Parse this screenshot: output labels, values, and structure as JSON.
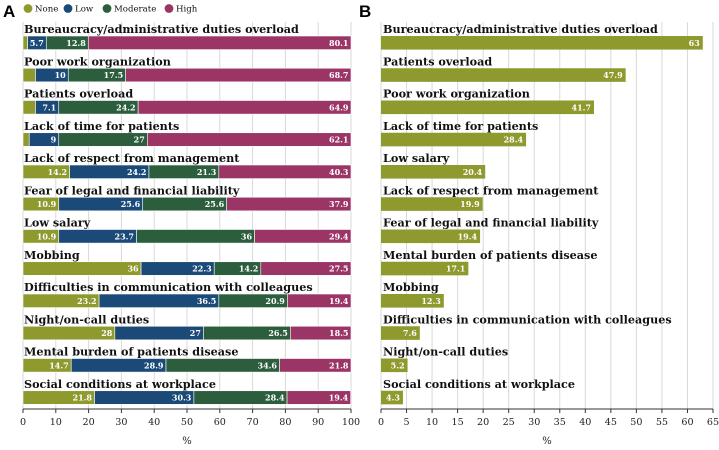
{
  "panels": {
    "a": "A",
    "b": "B"
  },
  "colors": {
    "None": "#8f9a2e",
    "Low": "#1b4a78",
    "Moderate": "#2c5e3e",
    "High": "#9b3566"
  },
  "chart_data": [
    {
      "type": "bar",
      "stacked": true,
      "orientation": "horizontal",
      "panel": "A",
      "xlabel": "%",
      "xlim": [
        0,
        100
      ],
      "xticks": [
        0,
        10,
        20,
        30,
        40,
        50,
        60,
        70,
        80,
        90,
        100
      ],
      "legend_position": "top-left",
      "categories": [
        "Bureaucracy/administrative duties overload",
        "Poor work organization",
        "Patients overload",
        "Lack of time for patients",
        "Lack of respect from management",
        "Fear of legal and financial liability",
        "Low salary",
        "Mobbing",
        "Difficulties in communication with colleagues",
        "Night/on-call duties",
        "Mental burden of patients disease",
        "Social conditions at workplace"
      ],
      "series": [
        {
          "name": "None",
          "values": [
            1.4,
            3.8,
            3.8,
            1.9,
            14.2,
            10.9,
            10.9,
            36,
            23.2,
            28,
            14.7,
            21.8
          ]
        },
        {
          "name": "Low",
          "values": [
            5.7,
            10,
            7.1,
            9,
            24.2,
            25.6,
            23.7,
            22.3,
            36.5,
            27,
            28.9,
            30.3
          ]
        },
        {
          "name": "Moderate",
          "values": [
            12.8,
            17.5,
            24.2,
            27,
            21.3,
            25.6,
            36,
            14.2,
            20.9,
            26.5,
            34.6,
            28.4
          ]
        },
        {
          "name": "High",
          "values": [
            80.1,
            68.7,
            64.9,
            62.1,
            40.3,
            37.9,
            29.4,
            27.5,
            19.4,
            18.5,
            21.8,
            19.4
          ]
        }
      ],
      "label_min": 5
    },
    {
      "type": "bar",
      "orientation": "horizontal",
      "panel": "B",
      "xlabel": "%",
      "xlim": [
        0,
        65
      ],
      "xticks": [
        0,
        5,
        10,
        15,
        20,
        25,
        30,
        35,
        40,
        45,
        50,
        55,
        60,
        65
      ],
      "categories": [
        "Bureaucracy/administrative duties overload",
        "Patients overload",
        "Poor work organization",
        "Lack of time for patients",
        "Low salary",
        "Lack of respect from management",
        "Fear of legal and financial liability",
        "Mental burden of patients disease",
        "Mobbing",
        "Difficulties in communication with colleagues",
        "Night/on-call duties",
        "Social conditions at workplace"
      ],
      "values": [
        63,
        47.9,
        41.7,
        28.4,
        20.4,
        19.9,
        19.4,
        17.1,
        12.3,
        7.6,
        5.2,
        4.3
      ]
    }
  ]
}
